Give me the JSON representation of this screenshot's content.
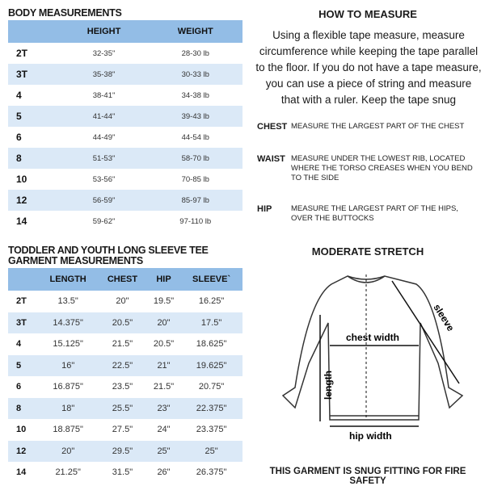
{
  "body_measurements": {
    "title": "BODY MEASUREMENTS",
    "columns": [
      "",
      "HEIGHT",
      "WEIGHT"
    ],
    "rows": [
      [
        "2T",
        "32-35\"",
        "28-30 lb"
      ],
      [
        "3T",
        "35-38\"",
        "30-33 lb"
      ],
      [
        "4",
        "38-41\"",
        "34-38 lb"
      ],
      [
        "5",
        "41-44\"",
        "39-43 lb"
      ],
      [
        "6",
        "44-49\"",
        "44-54 lb"
      ],
      [
        "8",
        "51-53\"",
        "58-70 lb"
      ],
      [
        "10",
        "53-56\"",
        "70-85 lb"
      ],
      [
        "12",
        "56-59\"",
        "85-97 lb"
      ],
      [
        "14",
        "59-62\"",
        "97-110 lb"
      ]
    ]
  },
  "garment": {
    "title_line1": "TODDLER AND YOUTH LONG SLEEVE TEE",
    "title_line2": "GARMENT MEASUREMENTS",
    "columns": [
      "",
      "LENGTH",
      "CHEST",
      "HIP",
      "SLEEVE`"
    ],
    "rows": [
      [
        "2T",
        "13.5\"",
        "20\"",
        "19.5\"",
        "16.25\""
      ],
      [
        "3T",
        "14.375\"",
        "20.5\"",
        "20\"",
        "17.5\""
      ],
      [
        "4",
        "15.125\"",
        "21.5\"",
        "20.5\"",
        "18.625\""
      ],
      [
        "5",
        "16\"",
        "22.5\"",
        "21\"",
        "19.625\""
      ],
      [
        "6",
        "16.875\"",
        "23.5\"",
        "21.5\"",
        "20.75\""
      ],
      [
        "8",
        "18\"",
        "25.5\"",
        "23\"",
        "22.375\""
      ],
      [
        "10",
        "18.875\"",
        "27.5\"",
        "24\"",
        "23.375\""
      ],
      [
        "12",
        "20\"",
        "29.5\"",
        "25\"",
        "25\""
      ],
      [
        "14",
        "21.25\"",
        "31.5\"",
        "26\"",
        "26.375\""
      ]
    ]
  },
  "how_to": {
    "title": "HOW TO MEASURE",
    "intro": "Using a flexible tape measure, measure circumference while keeping the tape parallel to the floor.  If you do not have a tape measure, you can use a piece of string and measure that with a ruler. Keep the tape snug",
    "items": [
      {
        "label": "CHEST",
        "text": "MEASURE THE LARGEST PART OF THE CHEST"
      },
      {
        "label": "WAIST",
        "text": "MEASURE UNDER THE LOWEST RIB, LOCATED WHERE THE TORSO CREASES WHEN YOU BEND TO THE SIDE"
      },
      {
        "label": "HIP",
        "text": "MEASURE THE LARGEST PART OF THE HIPS, OVER THE BUTTOCKS"
      }
    ]
  },
  "stretch": {
    "title": "MODERATE STRETCH"
  },
  "diagram": {
    "chest": "chest width",
    "length": "length",
    "sleeve": "sleeve",
    "hip": "hip width"
  },
  "footer": "THIS GARMENT IS SNUG FITTING FOR FIRE SAFETY",
  "colors": {
    "header": "#93bde6",
    "stripe": "#dbe9f7"
  }
}
